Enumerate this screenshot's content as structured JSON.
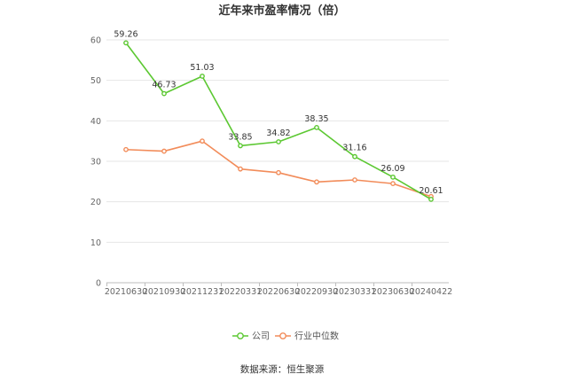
{
  "chart_data": {
    "type": "line",
    "title": "近年来市盈率情况（倍）",
    "categories": [
      "20210630",
      "20210930",
      "20211231",
      "20220331",
      "20220630",
      "20220930",
      "20230331",
      "20230630",
      "20240422"
    ],
    "ylim": [
      0,
      60
    ],
    "yticks": [
      0,
      10,
      20,
      30,
      40,
      50,
      60
    ],
    "grid": true,
    "legend_position": "bottom",
    "series": [
      {
        "name": "公司",
        "color": "#5cc832",
        "values": [
          59.26,
          46.73,
          51.03,
          33.85,
          34.82,
          38.35,
          31.16,
          26.09,
          20.61
        ],
        "labels": [
          "59.26",
          "46.73",
          "51.03",
          "33.85",
          "34.82",
          "38.35",
          "31.16",
          "26.09",
          "20.61"
        ]
      },
      {
        "name": "行业中位数",
        "color": "#f28c5a",
        "values": [
          32.9,
          32.5,
          35.0,
          28.1,
          27.2,
          24.9,
          25.4,
          24.5,
          21.3
        ]
      }
    ]
  },
  "source": "数据来源：恒生聚源"
}
